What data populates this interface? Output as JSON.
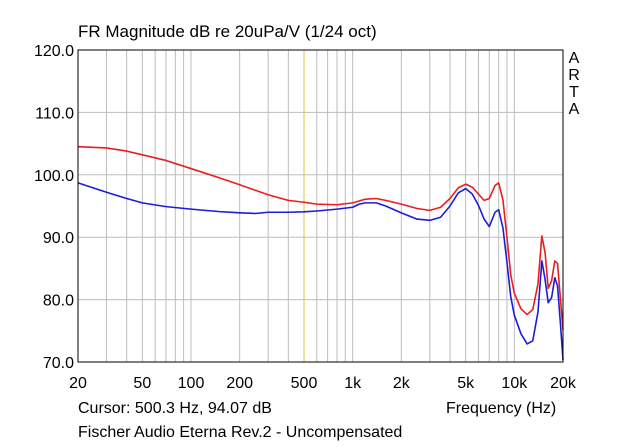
{
  "chart_data": {
    "type": "line",
    "title": "FR Magnitude dB re 20uPa/V (1/24 oct)",
    "xlabel": "Frequency (Hz)",
    "ylabel": "",
    "xscale": "log",
    "xlim": [
      20,
      20000
    ],
    "ylim": [
      70,
      120
    ],
    "yticks": [
      70,
      80,
      90,
      100,
      110,
      120
    ],
    "ytick_labels": [
      "70.0",
      "80.0",
      "90.0",
      "100.0",
      "110.0",
      "120.0"
    ],
    "xticks": [
      20,
      50,
      100,
      200,
      500,
      1000,
      2000,
      5000,
      10000,
      20000
    ],
    "xtick_labels": [
      "20",
      "50",
      "100",
      "200",
      "500",
      "1k",
      "2k",
      "5k",
      "10k",
      "20k"
    ],
    "grid": true,
    "cursor_freq": 500.3,
    "series": [
      {
        "name": "red",
        "color": "#ee1c1c",
        "points": [
          [
            20,
            104.5
          ],
          [
            30,
            104.3
          ],
          [
            40,
            103.8
          ],
          [
            50,
            103.2
          ],
          [
            70,
            102.3
          ],
          [
            100,
            101.0
          ],
          [
            150,
            99.5
          ],
          [
            200,
            98.4
          ],
          [
            300,
            96.8
          ],
          [
            400,
            95.9
          ],
          [
            500,
            95.6
          ],
          [
            600,
            95.3
          ],
          [
            800,
            95.2
          ],
          [
            1000,
            95.5
          ],
          [
            1200,
            96.1
          ],
          [
            1400,
            96.2
          ],
          [
            1600,
            95.9
          ],
          [
            2000,
            95.3
          ],
          [
            2500,
            94.6
          ],
          [
            3000,
            94.3
          ],
          [
            3500,
            94.8
          ],
          [
            4000,
            96.2
          ],
          [
            4500,
            97.9
          ],
          [
            5000,
            98.5
          ],
          [
            5500,
            98.0
          ],
          [
            6000,
            96.9
          ],
          [
            6500,
            95.9
          ],
          [
            7000,
            96.2
          ],
          [
            7600,
            98.3
          ],
          [
            8000,
            98.7
          ],
          [
            8500,
            96.0
          ],
          [
            9000,
            90.0
          ],
          [
            9500,
            84.0
          ],
          [
            10000,
            81.0
          ],
          [
            11000,
            78.5
          ],
          [
            12000,
            77.6
          ],
          [
            13000,
            78.4
          ],
          [
            14000,
            82.5
          ],
          [
            14800,
            90.2
          ],
          [
            15500,
            87.5
          ],
          [
            16200,
            81.8
          ],
          [
            17000,
            83.0
          ],
          [
            17800,
            86.2
          ],
          [
            18500,
            85.8
          ],
          [
            19300,
            80.0
          ],
          [
            20000,
            75.2
          ]
        ]
      },
      {
        "name": "blue",
        "color": "#1c1cdd",
        "points": [
          [
            20,
            98.7
          ],
          [
            30,
            97.2
          ],
          [
            40,
            96.2
          ],
          [
            50,
            95.5
          ],
          [
            70,
            94.9
          ],
          [
            100,
            94.5
          ],
          [
            150,
            94.1
          ],
          [
            200,
            93.9
          ],
          [
            250,
            93.8
          ],
          [
            300,
            94.0
          ],
          [
            400,
            94.0
          ],
          [
            500,
            94.07
          ],
          [
            600,
            94.2
          ],
          [
            800,
            94.5
          ],
          [
            1000,
            94.8
          ],
          [
            1100,
            95.3
          ],
          [
            1200,
            95.5
          ],
          [
            1400,
            95.5
          ],
          [
            1600,
            95.0
          ],
          [
            2000,
            93.9
          ],
          [
            2500,
            92.9
          ],
          [
            3000,
            92.7
          ],
          [
            3500,
            93.2
          ],
          [
            4000,
            95.0
          ],
          [
            4500,
            97.1
          ],
          [
            5000,
            97.8
          ],
          [
            5500,
            96.9
          ],
          [
            6000,
            95.1
          ],
          [
            6500,
            92.9
          ],
          [
            7000,
            91.7
          ],
          [
            7600,
            94.0
          ],
          [
            8000,
            94.4
          ],
          [
            8500,
            91.5
          ],
          [
            9000,
            86.0
          ],
          [
            9500,
            80.5
          ],
          [
            10000,
            77.5
          ],
          [
            11000,
            74.5
          ],
          [
            12000,
            72.9
          ],
          [
            13000,
            73.4
          ],
          [
            14000,
            78.0
          ],
          [
            14800,
            86.2
          ],
          [
            15500,
            83.2
          ],
          [
            16200,
            79.5
          ],
          [
            17000,
            80.3
          ],
          [
            17800,
            83.5
          ],
          [
            18500,
            82.2
          ],
          [
            19300,
            76.0
          ],
          [
            20000,
            70.3
          ]
        ]
      }
    ]
  },
  "header": {
    "title": "FR Magnitude dB re 20uPa/V (1/24 oct)"
  },
  "footer": {
    "cursor": "Cursor: 500.3 Hz, 94.07 dB",
    "xlabel": "Frequency (Hz)",
    "caption": "Fischer Audio Eterna Rev.2 - Uncompensated"
  },
  "brand": {
    "letters": [
      "A",
      "R",
      "T",
      "A"
    ]
  },
  "colors": {
    "grid": "#bdbdbd",
    "cursor": "#d8c94a",
    "frame": "#000000"
  }
}
